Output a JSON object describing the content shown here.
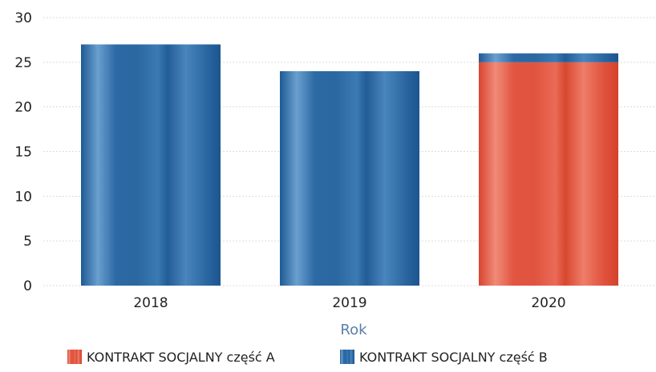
{
  "chart_data": {
    "type": "bar",
    "stacked": true,
    "categories": [
      "2018",
      "2019",
      "2020"
    ],
    "series": [
      {
        "name": "KONTRAKT SOCJALNY część A",
        "values": [
          0,
          0,
          25
        ],
        "color": "#e0523f"
      },
      {
        "name": "KONTRAKT SOCJALNY część B",
        "values": [
          27,
          24,
          1
        ],
        "color": "#2f6fa8"
      }
    ],
    "title": "",
    "xlabel": "Rok",
    "ylabel": "",
    "ylim": [
      0,
      30
    ],
    "yticks": [
      "0",
      "5",
      "10",
      "15",
      "20",
      "25",
      "30"
    ],
    "grid": true,
    "legend_position": "bottom"
  }
}
